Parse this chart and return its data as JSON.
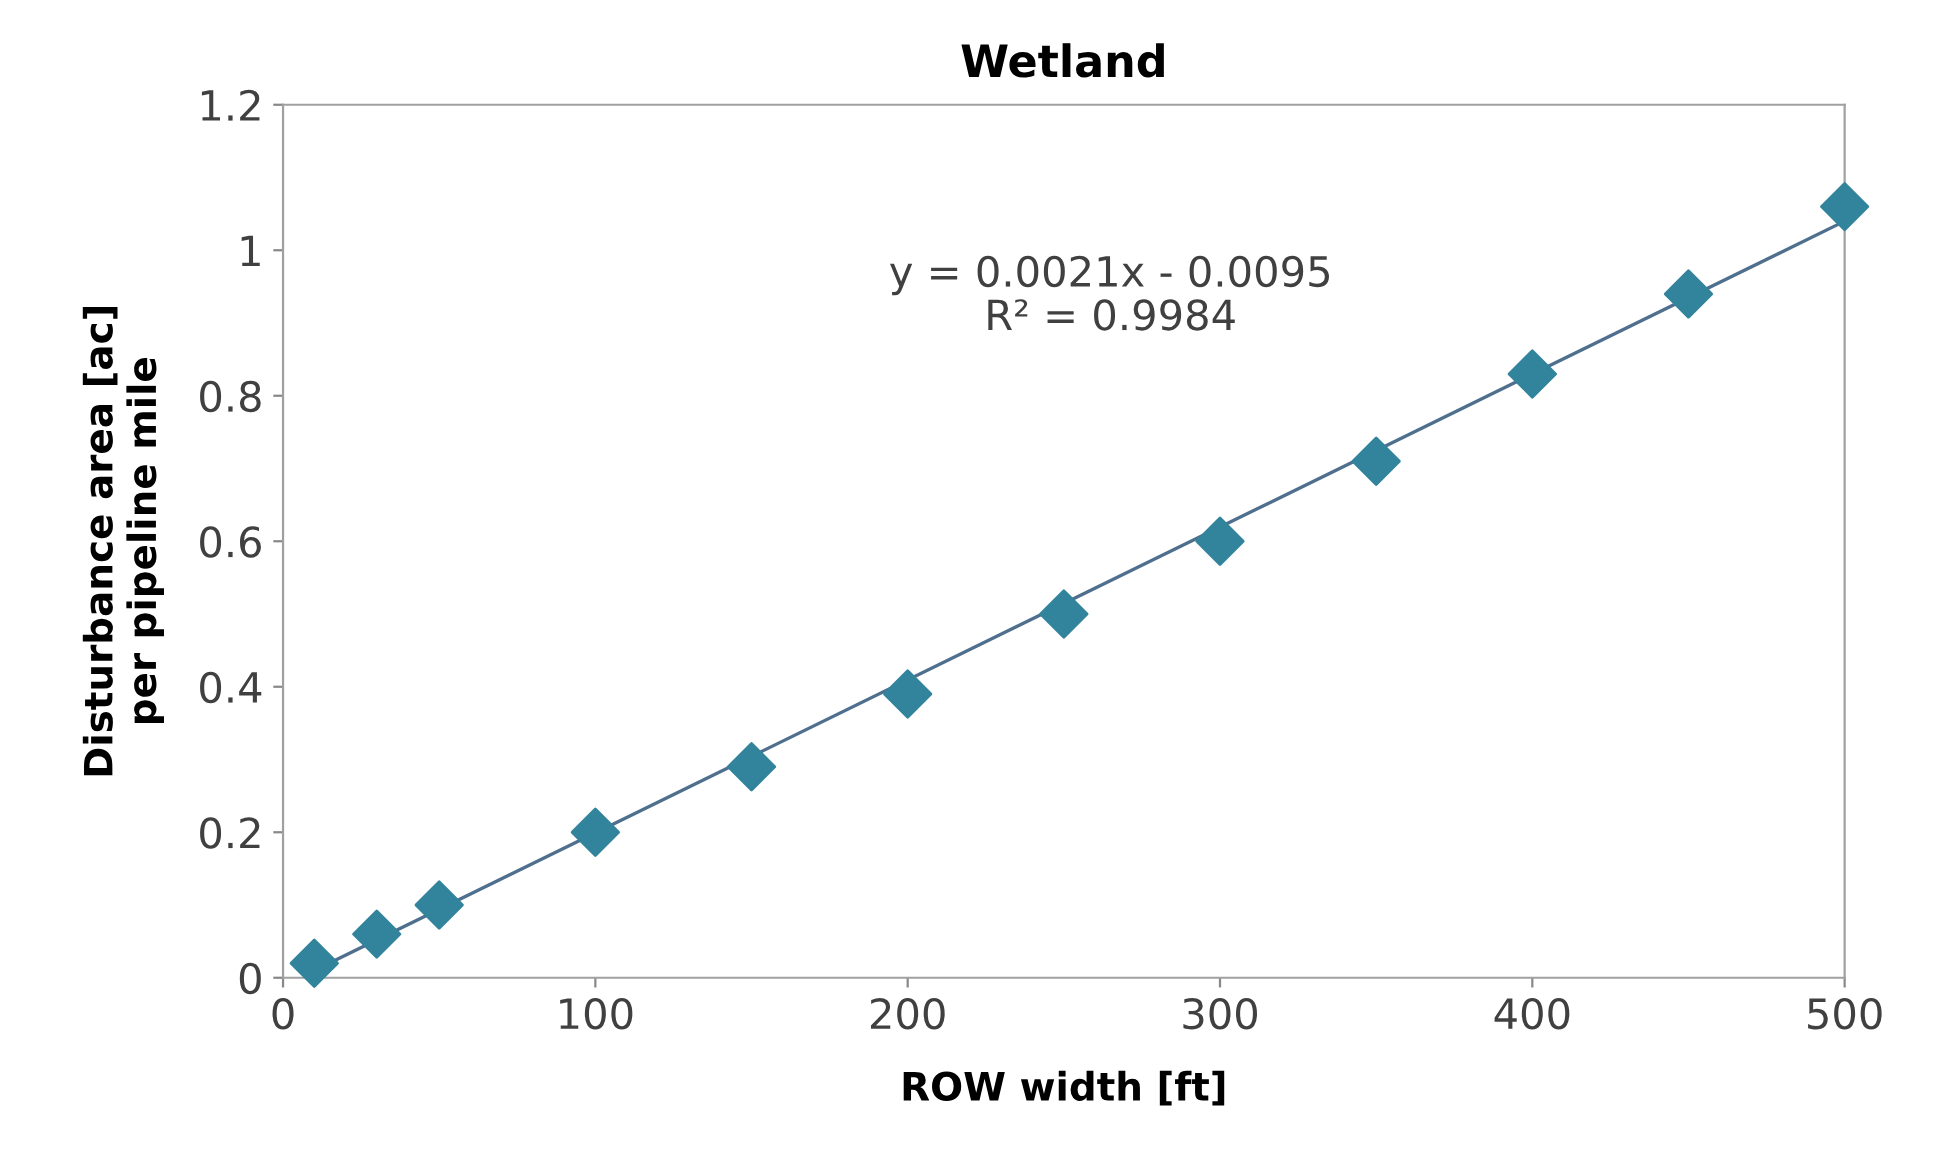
{
  "chart_data": {
    "type": "scatter",
    "title": "Wetland",
    "xlabel": "ROW width [ft]",
    "ylabel": "Disturbance area [ac]\nper pipeline mile",
    "x": [
      10,
      30,
      50,
      100,
      150,
      200,
      250,
      300,
      350,
      400,
      450,
      500
    ],
    "series": [
      {
        "color": "#31849b",
        "marker": "diamond",
        "values": [
          0.02,
          0.06,
          0.1,
          0.2,
          0.29,
          0.39,
          0.5,
          0.6,
          0.71,
          0.83,
          0.94,
          1.06
        ]
      },
      {
        "type": "line",
        "color": "#4f6f8f",
        "marker": "none",
        "line_style": "solid",
        "x": [
          10,
          500
        ],
        "values": [
          0.01,
          1.04
        ]
      }
    ],
    "annotations": [
      "y = 0.0021x - 0.0095\nR² = 0.9984"
    ],
    "xlim": [
      0,
      500
    ],
    "xticks": [
      0,
      100,
      200,
      300,
      400,
      500
    ],
    "ylim": [
      0,
      1.2
    ],
    "yticks": [
      0,
      {
        "value": 0.2,
        "label": "0.2"
      },
      {
        "value": 0.4,
        "label": "0.4"
      },
      {
        "value": 0.6,
        "label": "0.6"
      },
      {
        "value": 0.8,
        "label": "0.8"
      },
      1,
      {
        "value": 1.2,
        "label": "1.2"
      }
    ],
    "grid": false,
    "legend": false
  }
}
